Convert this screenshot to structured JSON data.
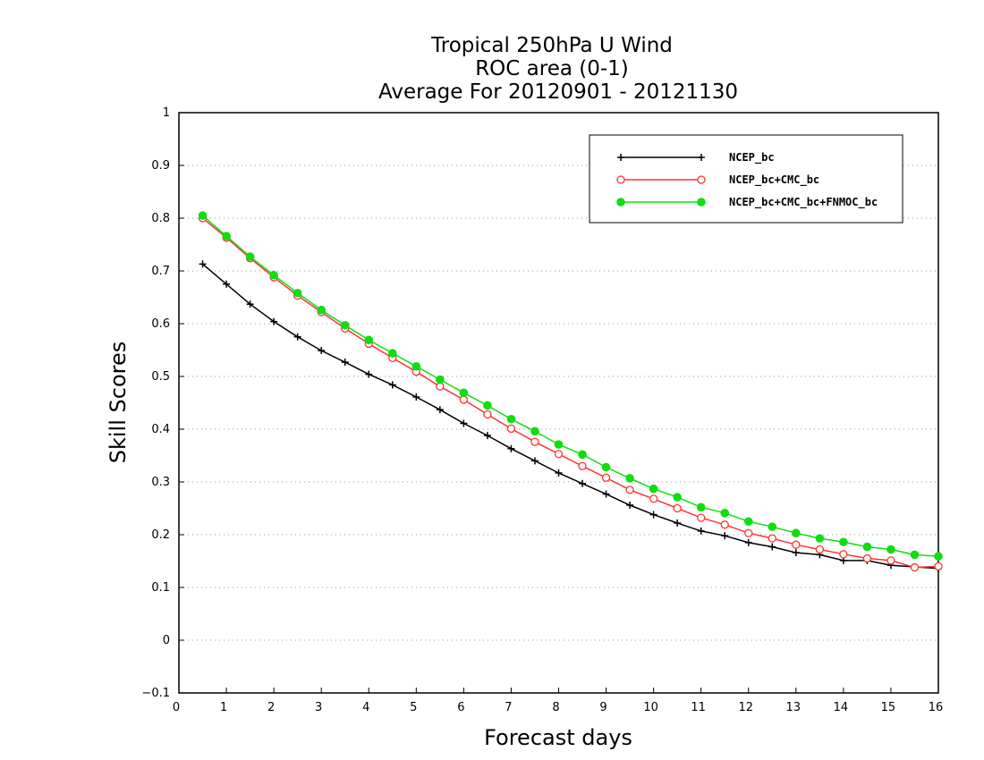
{
  "chart_data": {
    "type": "line",
    "title_lines": [
      "Tropical 250hPa U Wind",
      "ROC area (0-1)",
      "Average For 20120901 - 20121130"
    ],
    "xlabel": "Forecast days",
    "ylabel": "Skill Scores",
    "xlim": [
      0,
      16
    ],
    "ylim": [
      -0.1,
      1
    ],
    "x_ticks": [
      "0",
      "1",
      "2",
      "3",
      "4",
      "5",
      "6",
      "7",
      "8",
      "9",
      "10",
      "11",
      "12",
      "13",
      "14",
      "15",
      "16"
    ],
    "y_ticks": [
      "−0.1",
      "0",
      "0.1",
      "0.2",
      "0.3",
      "0.4",
      "0.5",
      "0.6",
      "0.7",
      "0.8",
      "0.9",
      "1"
    ],
    "grid": "horizontal dotted",
    "legend_position": "top-right",
    "x": [
      0.5,
      1,
      1.5,
      2,
      2.5,
      3,
      3.5,
      4,
      4.5,
      5,
      5.5,
      6,
      6.5,
      7,
      7.5,
      8,
      8.5,
      9,
      9.5,
      10,
      10.5,
      11,
      11.5,
      12,
      12.5,
      13,
      13.5,
      14,
      14.5,
      15,
      15.5,
      16
    ],
    "series": [
      {
        "name": "NCEP_bc",
        "color": "#000000",
        "marker": "plus",
        "values": [
          0.713,
          0.675,
          0.637,
          0.604,
          0.575,
          0.549,
          0.527,
          0.504,
          0.484,
          0.461,
          0.437,
          0.411,
          0.388,
          0.363,
          0.34,
          0.317,
          0.297,
          0.277,
          0.256,
          0.238,
          0.222,
          0.207,
          0.198,
          0.185,
          0.177,
          0.166,
          0.162,
          0.151,
          0.151,
          0.142,
          0.139,
          0.136
        ]
      },
      {
        "name": "NCEP_bc+CMC_bc",
        "color": "#ff3333",
        "marker": "open-circle",
        "values": [
          0.8,
          0.763,
          0.724,
          0.688,
          0.653,
          0.622,
          0.591,
          0.562,
          0.535,
          0.509,
          0.481,
          0.456,
          0.428,
          0.401,
          0.376,
          0.353,
          0.33,
          0.308,
          0.285,
          0.268,
          0.25,
          0.232,
          0.219,
          0.203,
          0.193,
          0.181,
          0.172,
          0.163,
          0.155,
          0.151,
          0.138,
          0.14
        ]
      },
      {
        "name": "NCEP_bc+CMC_bc+FNMOC_bc",
        "color": "#11dd11",
        "marker": "filled-circle",
        "values": [
          0.805,
          0.766,
          0.727,
          0.692,
          0.658,
          0.626,
          0.597,
          0.569,
          0.544,
          0.519,
          0.494,
          0.469,
          0.445,
          0.419,
          0.396,
          0.371,
          0.352,
          0.328,
          0.307,
          0.287,
          0.271,
          0.252,
          0.241,
          0.225,
          0.215,
          0.203,
          0.193,
          0.186,
          0.177,
          0.172,
          0.162,
          0.159
        ]
      }
    ]
  }
}
